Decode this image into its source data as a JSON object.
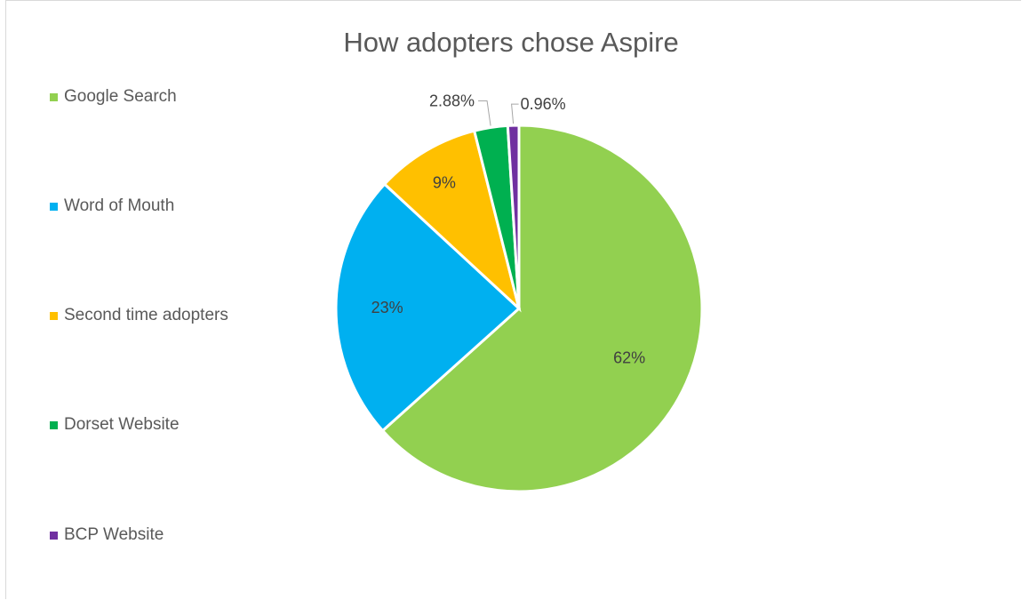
{
  "chart_data": {
    "type": "pie",
    "title": "How adopters chose Aspire",
    "legend_position": "left",
    "slices": [
      {
        "name": "Google Search",
        "value": 62,
        "label": "62%",
        "color": "#92d050"
      },
      {
        "name": "Word of Mouth",
        "value": 23,
        "label": "23%",
        "color": "#00b0f0"
      },
      {
        "name": "Second time adopters",
        "value": 9,
        "label": "9%",
        "color": "#ffc000"
      },
      {
        "name": "Dorset Website",
        "value": 2.88,
        "label": "2.88%",
        "color": "#00b050"
      },
      {
        "name": "BCP Website",
        "value": 0.96,
        "label": "0.96%",
        "color": "#7030a0"
      }
    ]
  }
}
